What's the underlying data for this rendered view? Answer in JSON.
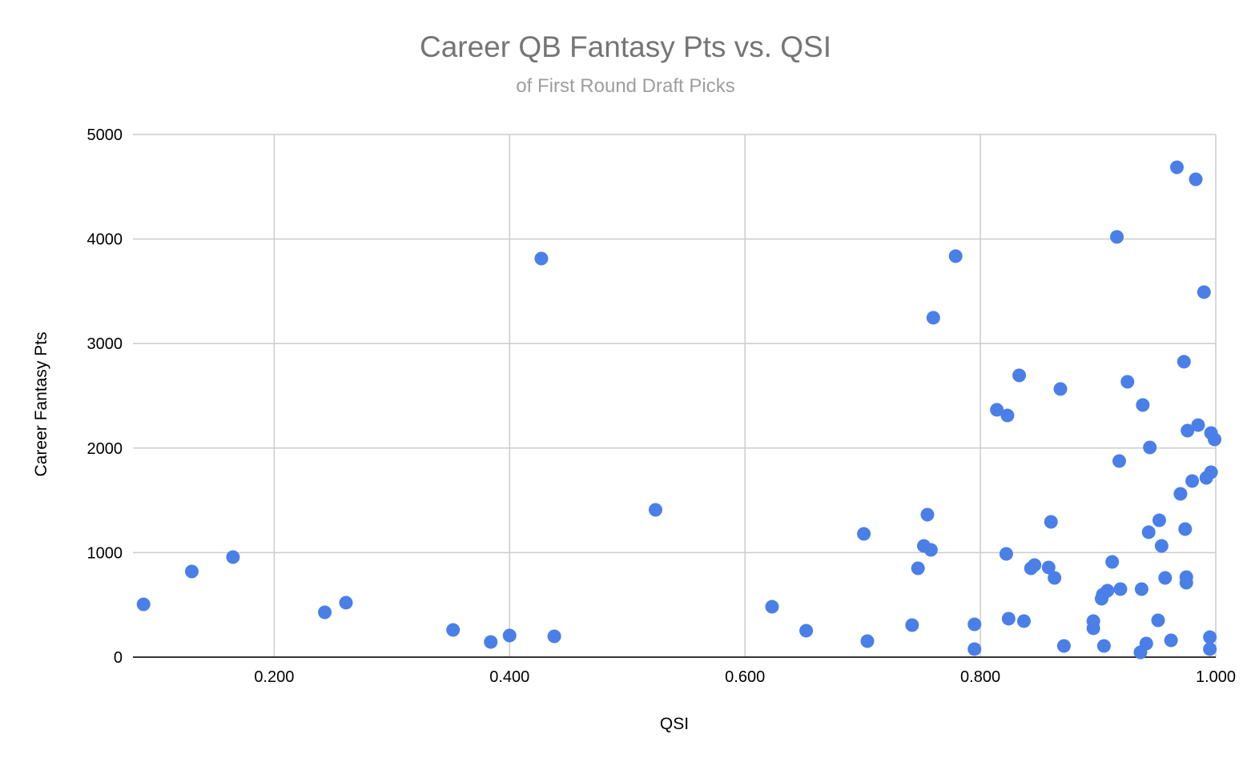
{
  "chart_data": {
    "type": "scatter",
    "title": "Career QB Fantasy Pts vs. QSI",
    "subtitle": "of First Round Draft Picks",
    "xlabel": "QSI",
    "ylabel": "Career Fantasy Pts",
    "xlim": [
      0.08,
      1.0
    ],
    "ylim": [
      0,
      5000
    ],
    "xticks": [
      0.2,
      0.4,
      0.6,
      0.8,
      1.0
    ],
    "xtick_labels": [
      "0.200",
      "0.400",
      "0.600",
      "0.800",
      "1.000"
    ],
    "yticks": [
      0,
      1000,
      2000,
      3000,
      4000,
      5000
    ],
    "ytick_labels": [
      "0",
      "1000",
      "2000",
      "3000",
      "4000",
      "5000"
    ],
    "grid": true,
    "legend": "none",
    "marker_color": "#4a7fe8",
    "series": [
      {
        "name": "Career Fantasy Pts",
        "points": [
          [
            0.089,
            505
          ],
          [
            0.13,
            819
          ],
          [
            0.165,
            957
          ],
          [
            0.243,
            429
          ],
          [
            0.261,
            521
          ],
          [
            0.352,
            260
          ],
          [
            0.384,
            145
          ],
          [
            0.4,
            207
          ],
          [
            0.427,
            3813
          ],
          [
            0.438,
            199
          ],
          [
            0.524,
            1409
          ],
          [
            0.623,
            482
          ],
          [
            0.652,
            253
          ],
          [
            0.701,
            1179
          ],
          [
            0.704,
            153
          ],
          [
            0.742,
            306
          ],
          [
            0.747,
            850
          ],
          [
            0.752,
            1064
          ],
          [
            0.755,
            1363
          ],
          [
            0.758,
            1026
          ],
          [
            0.76,
            3247
          ],
          [
            0.779,
            3836
          ],
          [
            0.795,
            314
          ],
          [
            0.795,
            77
          ],
          [
            0.814,
            2366
          ],
          [
            0.822,
            988
          ],
          [
            0.823,
            2312
          ],
          [
            0.824,
            368
          ],
          [
            0.833,
            2695
          ],
          [
            0.837,
            345
          ],
          [
            0.843,
            850
          ],
          [
            0.846,
            881
          ],
          [
            0.858,
            858
          ],
          [
            0.86,
            1294
          ],
          [
            0.863,
            758
          ],
          [
            0.868,
            2565
          ],
          [
            0.871,
            107
          ],
          [
            0.896,
            345
          ],
          [
            0.896,
            276
          ],
          [
            0.903,
            559
          ],
          [
            0.904,
            597
          ],
          [
            0.905,
            107
          ],
          [
            0.908,
            636
          ],
          [
            0.912,
            911
          ],
          [
            0.916,
            4020
          ],
          [
            0.918,
            1876
          ],
          [
            0.919,
            651
          ],
          [
            0.925,
            2634
          ],
          [
            0.936,
            46
          ],
          [
            0.937,
            651
          ],
          [
            0.938,
            2412
          ],
          [
            0.941,
            130
          ],
          [
            0.943,
            1195
          ],
          [
            0.944,
            2006
          ],
          [
            0.951,
            352
          ],
          [
            0.952,
            1309
          ],
          [
            0.954,
            1064
          ],
          [
            0.957,
            758
          ],
          [
            0.962,
            161
          ],
          [
            0.967,
            4686
          ],
          [
            0.97,
            1562
          ],
          [
            0.973,
            2826
          ],
          [
            0.974,
            1225
          ],
          [
            0.975,
            766
          ],
          [
            0.975,
            712
          ],
          [
            0.976,
            2167
          ],
          [
            0.98,
            1685
          ],
          [
            0.983,
            4571
          ],
          [
            0.985,
            2220
          ],
          [
            0.99,
            3492
          ],
          [
            0.992,
            1715
          ],
          [
            0.995,
            191
          ],
          [
            0.995,
            77
          ],
          [
            0.996,
            2144
          ],
          [
            0.996,
            1769
          ],
          [
            0.999,
            2083
          ]
        ]
      }
    ]
  },
  "colors": {
    "title": "#757575",
    "subtitle": "#9e9e9e",
    "gridline": "#cccccc",
    "axis": "#333333",
    "marker": "#4a7fe8"
  }
}
